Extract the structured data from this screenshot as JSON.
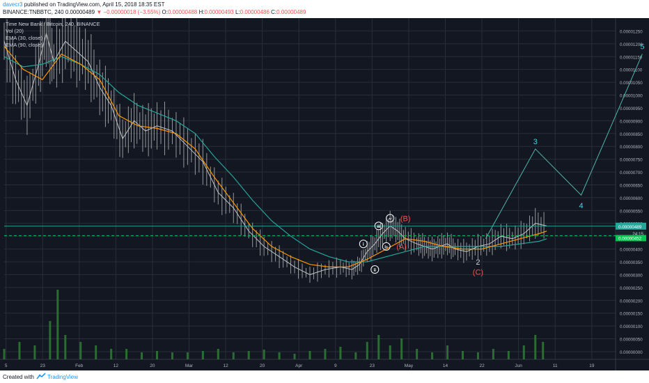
{
  "header": {
    "author": "davecr3",
    "published": "published on TradingView.com, April 15, 2018 18:35 EST",
    "symbol": "BINANCE:TNBBTC, 240",
    "last": "0.00000489",
    "change": "▼ −0.00000018 (−3.55%)",
    "o_label": "O:",
    "o_value": "0.00000488",
    "h_label": "H:",
    "h_value": "0.00000493",
    "l_label": "L:",
    "l_value": "0.00000486",
    "c_label": "C:",
    "c_value": "0.00000489"
  },
  "legend": {
    "title": "Time New Bank / Bitcoin, 240, BINANCE",
    "vol": "Vol (20)",
    "ema30": "EMA (30, close)",
    "ema90": "EMA (90, close)"
  },
  "footer": {
    "created_with": "Created with",
    "brand": "TradingView"
  },
  "chart_data": {
    "type": "line",
    "y_axis": {
      "ticks": [
        0.0,
        5e-07,
        1e-06,
        1.5e-06,
        2e-06,
        2.5e-06,
        3e-06,
        3.5e-06,
        4e-06,
        4.5e-06,
        5e-06,
        5.5e-06,
        6e-06,
        6.5e-06,
        7e-06,
        7.5e-06,
        8e-06,
        8.5e-06,
        9e-06,
        9.5e-06,
        1e-05,
        1.05e-05,
        1.1e-05,
        1.15e-05,
        1.2e-05,
        1.25e-05
      ],
      "tick_labels": [
        "0.00000000",
        "0.00000050",
        "0.00000100",
        "0.00000150",
        "0.00000200",
        "0.00000250",
        "0.00000300",
        "0.00000350",
        "0.00000400",
        "0.00000450",
        "0.00000500",
        "0.00000550",
        "0.00000600",
        "0.00000650",
        "0.00000700",
        "0.00000750",
        "0.00000800",
        "0.00000850",
        "0.00000900",
        "0.00000950",
        "0.00001000",
        "0.00001050",
        "0.00001100",
        "0.00001150",
        "0.00001200",
        "0.00001250"
      ],
      "range": [
        -3e-07,
        1.3e-05
      ]
    },
    "x_axis": {
      "tick_labels": [
        "5",
        "23",
        "Feb",
        "12",
        "20",
        "Mar",
        "12",
        "20",
        "Apr",
        "9",
        "23",
        "May",
        "14",
        "22",
        "Jun",
        "11",
        "19"
      ],
      "range_days": [
        0,
        160
      ]
    },
    "price_labels": {
      "last": "0.00000489",
      "countdown": "24:15",
      "line": "0.00000452"
    },
    "price": {
      "x": [
        0,
        3,
        6,
        9,
        11,
        13,
        16,
        19,
        22,
        25,
        28,
        31,
        34,
        37,
        40,
        44,
        48,
        52,
        56,
        60,
        64,
        68,
        72,
        76,
        80,
        84,
        88,
        91,
        93,
        95,
        97,
        99,
        101,
        103,
        105,
        108,
        110,
        112,
        114,
        116,
        118,
        121,
        124,
        127,
        130,
        133,
        136,
        139,
        142
      ],
      "y": [
        1.21e-05,
        1.06e-05,
        9.6e-06,
        1.12e-05,
        1.24e-05,
        1.13e-05,
        1.21e-05,
        1.17e-05,
        1.13e-05,
        1.03e-05,
        9.6e-06,
        8.3e-06,
        9e-06,
        8.6e-06,
        8.8e-06,
        8.6e-06,
        8e-06,
        7.4e-06,
        6.2e-06,
        5.6e-06,
        4.7e-06,
        4.1e-06,
        3.7e-06,
        3.3e-06,
        3e-06,
        3.2e-06,
        3.3e-06,
        3.2e-06,
        3.4e-06,
        3.9e-06,
        4.2e-06,
        4.6e-06,
        4.9e-06,
        4.7e-06,
        4.4e-06,
        4.2e-06,
        4.1e-06,
        4e-06,
        4.1e-06,
        4.2e-06,
        4e-06,
        3.9e-06,
        4.1e-06,
        4.2e-06,
        4.5e-06,
        4.4e-06,
        4.6e-06,
        5e-06,
        4.9e-06
      ]
    },
    "ema30": {
      "x": [
        0,
        5,
        10,
        15,
        20,
        25,
        30,
        35,
        40,
        45,
        50,
        55,
        60,
        65,
        70,
        75,
        80,
        85,
        90,
        95,
        100,
        105,
        110,
        115,
        120,
        125,
        130,
        135,
        140,
        142
      ],
      "y": [
        1.19e-05,
        1.1e-05,
        1.06e-05,
        1.16e-05,
        1.12e-05,
        1.06e-05,
        9.2e-06,
        8.8e-06,
        8.7e-06,
        8.5e-06,
        7.9e-06,
        6.8e-06,
        5.8e-06,
        4.8e-06,
        4.1e-06,
        3.7e-06,
        3.4e-06,
        3.3e-06,
        3.3e-06,
        3.6e-06,
        4e-06,
        4.4e-06,
        4.3e-06,
        4.1e-06,
        4e-06,
        4e-06,
        4.2e-06,
        4.4e-06,
        4.6e-06,
        4.7e-06
      ]
    },
    "ema90": {
      "x": [
        0,
        5,
        10,
        15,
        20,
        25,
        30,
        35,
        40,
        45,
        50,
        55,
        60,
        65,
        70,
        75,
        80,
        85,
        90,
        95,
        100,
        105,
        110,
        115,
        120,
        125,
        130,
        135,
        140,
        142
      ],
      "y": [
        1.15e-05,
        1.11e-05,
        1.12e-05,
        1.15e-05,
        1.12e-05,
        1.08e-05,
        1.01e-05,
        9.6e-06,
        9.3e-06,
        9e-06,
        8.5e-06,
        7.6e-06,
        6.8e-06,
        5.9e-06,
        5.1e-06,
        4.5e-06,
        4e-06,
        3.7e-06,
        3.5e-06,
        3.5e-06,
        3.7e-06,
        3.9e-06,
        4.1e-06,
        4.1e-06,
        4.1e-06,
        4.1e-06,
        4.1e-06,
        4.2e-06,
        4.3e-06,
        4.4e-06
      ]
    },
    "projection": {
      "x": [
        126,
        139,
        151,
        167
      ],
      "y": [
        4.4e-06,
        7.9e-06,
        6.1e-06,
        1.16e-05
      ]
    },
    "horizontal_lines": [
      {
        "value": 4.89e-06,
        "style": "solid"
      },
      {
        "value": 4.52e-06,
        "style": "dashed"
      }
    ],
    "wave_labels": [
      {
        "text": "i",
        "x": 94,
        "y": 4.2e-06,
        "circled": true
      },
      {
        "text": "ii",
        "x": 97,
        "y": 3.2e-06,
        "circled": true
      },
      {
        "text": "iii",
        "x": 98,
        "y": 4.9e-06,
        "circled": true
      },
      {
        "text": "iv",
        "x": 100,
        "y": 4.1e-06,
        "circled": true
      },
      {
        "text": "v",
        "x": 101,
        "y": 5.2e-06,
        "circled": true
      },
      {
        "text": "(B)",
        "x": 105,
        "y": 5.2e-06,
        "color": "#ef5350"
      },
      {
        "text": "(A)",
        "x": 104,
        "y": 4.1e-06,
        "color": "#ef5350"
      },
      {
        "text": "2",
        "x": 124,
        "y": 3.5e-06,
        "color": "#d1d4dc"
      },
      {
        "text": "(C)",
        "x": 124,
        "y": 3.1e-06,
        "color": "#ef5350"
      },
      {
        "text": "3",
        "x": 139,
        "y": 8.2e-06,
        "color": "#4dd0e1"
      },
      {
        "text": "4",
        "x": 151,
        "y": 5.7e-06,
        "color": "#4dd0e1"
      },
      {
        "text": "5",
        "x": 167,
        "y": 1.19e-05,
        "color": "#4dd0e1"
      }
    ],
    "volume": {
      "x": [
        0,
        4,
        8,
        12,
        14,
        16,
        20,
        24,
        28,
        32,
        36,
        40,
        44,
        48,
        52,
        56,
        60,
        64,
        68,
        72,
        76,
        80,
        84,
        88,
        92,
        95,
        98,
        101,
        104,
        108,
        112,
        116,
        120,
        124,
        128,
        132,
        136,
        139,
        141
      ],
      "v": [
        0.15,
        0.25,
        0.2,
        0.55,
        1.0,
        0.35,
        0.25,
        0.2,
        0.15,
        0.15,
        0.1,
        0.12,
        0.1,
        0.1,
        0.12,
        0.15,
        0.1,
        0.12,
        0.14,
        0.1,
        0.08,
        0.12,
        0.15,
        0.18,
        0.1,
        0.25,
        0.35,
        0.2,
        0.3,
        0.15,
        0.1,
        0.2,
        0.12,
        0.1,
        0.15,
        0.12,
        0.2,
        0.35,
        0.25
      ]
    },
    "colors": {
      "background": "#131722",
      "grid": "#2a2e39",
      "candles": "#c4c4c4",
      "ema30": "#ff9800",
      "ema90": "#26a69a",
      "projection": "#4db6ac",
      "last_line": "#26a69a",
      "dashed_line": "#00c853",
      "volume": "#2e7d32"
    },
    "grid": true,
    "legend_position": "top-left"
  }
}
